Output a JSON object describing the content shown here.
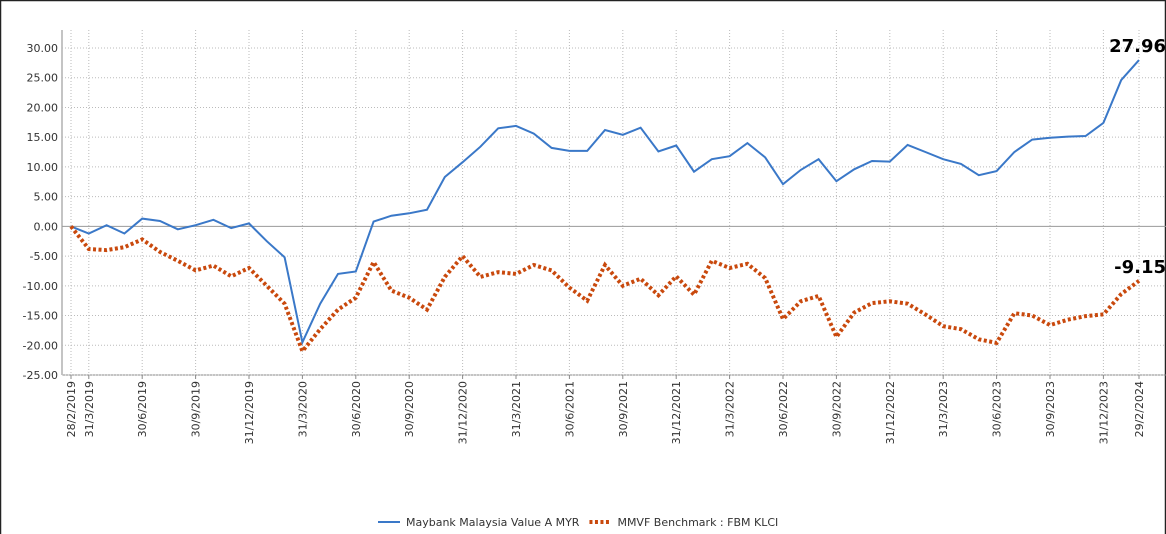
{
  "chart_data": {
    "type": "line",
    "categories": [
      "28/2/2019",
      "31/3/2019",
      null,
      null,
      "30/6/2019",
      null,
      null,
      "30/9/2019",
      null,
      null,
      "31/12/2019",
      null,
      null,
      "31/3/2020",
      null,
      null,
      "30/6/2020",
      null,
      null,
      "30/9/2020",
      null,
      null,
      "31/12/2020",
      null,
      null,
      "31/3/2021",
      null,
      null,
      "30/6/2021",
      null,
      null,
      "30/9/2021",
      null,
      null,
      "31/12/2021",
      null,
      null,
      "31/3/2022",
      null,
      null,
      "30/6/2022",
      null,
      null,
      "30/9/2022",
      null,
      null,
      "31/12/2022",
      null,
      null,
      "31/3/2023",
      null,
      null,
      "30/6/2023",
      null,
      null,
      "30/9/2023",
      null,
      null,
      "31/12/2023",
      null,
      "29/2/2024"
    ],
    "series": [
      {
        "name": "Maybank Malaysia Value A MYR",
        "color": "#3a78c8",
        "style": "solid",
        "values": [
          0,
          -1.2,
          0.2,
          -1.2,
          1.3,
          0.9,
          -0.5,
          0.2,
          1.1,
          -0.3,
          0.5,
          -2.5,
          -5.2,
          -19.5,
          -13,
          -8,
          -7.6,
          0.8,
          1.8,
          2.2,
          2.8,
          8.3,
          10.8,
          13.4,
          16.5,
          16.9,
          15.6,
          13.2,
          12.7,
          12.7,
          16.2,
          15.4,
          16.6,
          12.6,
          13.6,
          9.2,
          11.3,
          11.8,
          14,
          11.6,
          7.1,
          9.5,
          11.3,
          7.6,
          9.6,
          11,
          10.9,
          13.7,
          12.5,
          11.3,
          10.5,
          8.6,
          9.3,
          12.5,
          14.6,
          14.9,
          15.1,
          15.2,
          17.4,
          24.6,
          27.96
        ]
      },
      {
        "name": "MMVF Benchmark : FBM KLCI",
        "color": "#c9490d",
        "style": "dotted",
        "values": [
          0,
          -3.8,
          -4,
          -3.5,
          -2.2,
          -4.3,
          -5.8,
          -7.4,
          -6.6,
          -8.4,
          -7,
          -10,
          -13,
          -21,
          -17.3,
          -14,
          -12,
          -6,
          -10.8,
          -12,
          -14,
          -8.5,
          -5,
          -8.5,
          -7.7,
          -8,
          -6.5,
          -7.4,
          -10.3,
          -12.5,
          -6.5,
          -10,
          -8.8,
          -11.6,
          -8.4,
          -11.5,
          -5.8,
          -7,
          -6.3,
          -8.7,
          -15.6,
          -12.6,
          -11.7,
          -18.6,
          -14.5,
          -12.9,
          -12.6,
          -13,
          -14.8,
          -16.8,
          -17.3,
          -19,
          -19.6,
          -14.6,
          -15,
          -16.6,
          -15.7,
          -15.1,
          -14.8,
          -11.4,
          -9.15
        ]
      }
    ],
    "ylim": [
      -25,
      30
    ],
    "yticks": [
      {
        "value": -25,
        "label": "-25.00"
      },
      {
        "value": -20,
        "label": "-20.00"
      },
      {
        "value": -15,
        "label": "-15.00"
      },
      {
        "value": -10,
        "label": "-10.00"
      },
      {
        "value": -5,
        "label": "-5.00"
      },
      {
        "value": 0,
        "label": "0.00"
      },
      {
        "value": 5,
        "label": "5.00"
      },
      {
        "value": 10,
        "label": "10.00"
      },
      {
        "value": 15,
        "label": "15.00"
      },
      {
        "value": 20,
        "label": "20.00"
      },
      {
        "value": 25,
        "label": "25.00"
      },
      {
        "value": 30,
        "label": "30.00"
      }
    ],
    "grid": true,
    "legend": "bottom"
  }
}
